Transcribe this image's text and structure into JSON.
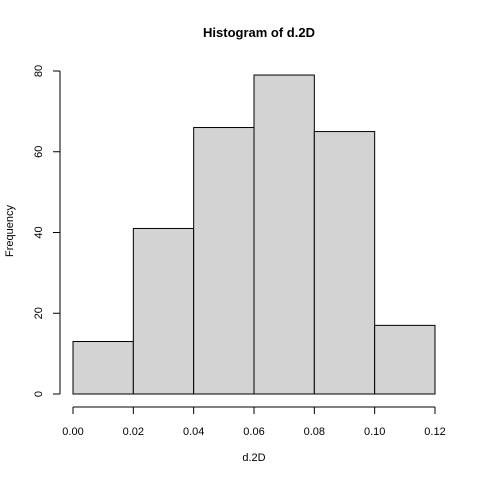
{
  "chart_data": {
    "type": "bar",
    "title": "Histogram of d.2D",
    "xlabel": "d.2D",
    "ylabel": "Frequency",
    "bins": [
      {
        "from": 0.0,
        "to": 0.02,
        "value": 13
      },
      {
        "from": 0.02,
        "to": 0.04,
        "value": 41
      },
      {
        "from": 0.04,
        "to": 0.06,
        "value": 66
      },
      {
        "from": 0.06,
        "to": 0.08,
        "value": 79
      },
      {
        "from": 0.08,
        "to": 0.1,
        "value": 65
      },
      {
        "from": 0.1,
        "to": 0.12,
        "value": 17
      }
    ],
    "xlim": [
      0.0,
      0.12
    ],
    "ylim": [
      0,
      80
    ],
    "x_ticks": [
      "0.00",
      "0.02",
      "0.04",
      "0.06",
      "0.08",
      "0.10",
      "0.12"
    ],
    "y_ticks": [
      "0",
      "20",
      "40",
      "60",
      "80"
    ],
    "grid": false,
    "bar_fill": "#d3d3d3",
    "bar_stroke": "#000000"
  }
}
